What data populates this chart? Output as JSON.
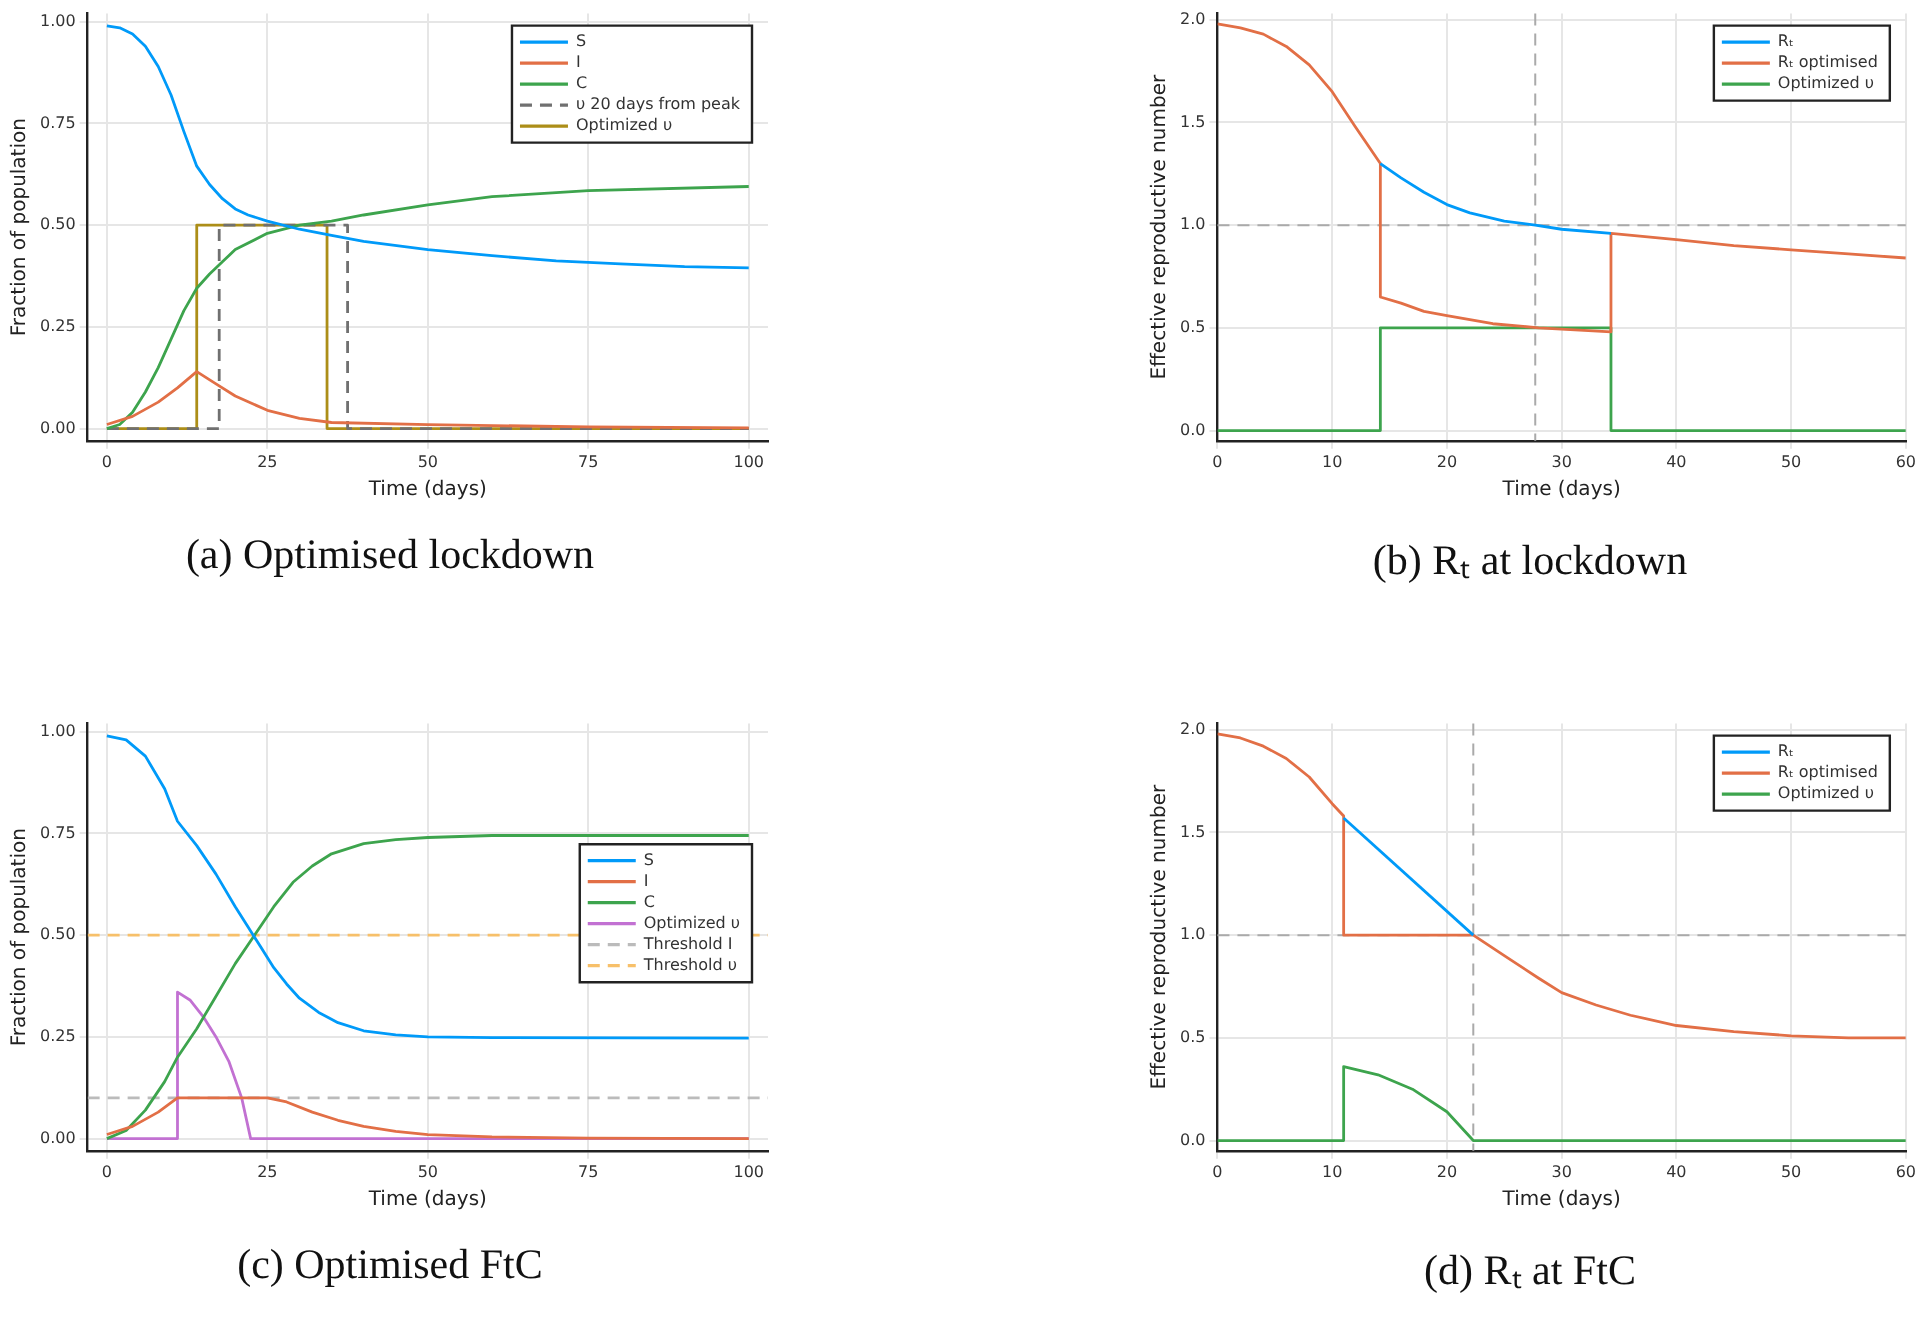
{
  "chart_data": [
    {
      "type": "line",
      "xlabel": "Time (days)",
      "ylabel": "Fraction of population",
      "xlim": [
        -3,
        103
      ],
      "xticks": [
        0,
        25,
        50,
        75,
        100
      ],
      "ylim": [
        -0.03,
        1.02
      ],
      "yticks": [
        {
          "value": 0,
          "label": "0.00"
        },
        {
          "value": 0.25,
          "label": "0.25"
        },
        {
          "value": 0.5,
          "label": "0.50"
        },
        {
          "value": 0.75,
          "label": "0.75"
        },
        {
          "value": 1,
          "label": "1.00"
        }
      ],
      "grid": true,
      "legend": "top right",
      "marker": "none",
      "annotations": [
        "(a) Optimised lockdown"
      ],
      "series": [
        {
          "name": "S",
          "color": "#009af9",
          "x": [
            0,
            2,
            4,
            6,
            8,
            10,
            12,
            14,
            16,
            18,
            20,
            22,
            25,
            30,
            35,
            40,
            50,
            60,
            70,
            80,
            90,
            100
          ],
          "values": [
            0.99,
            0.985,
            0.97,
            0.94,
            0.89,
            0.82,
            0.73,
            0.645,
            0.6,
            0.565,
            0.54,
            0.525,
            0.51,
            0.49,
            0.475,
            0.46,
            0.44,
            0.425,
            0.412,
            0.405,
            0.398,
            0.395
          ]
        },
        {
          "name": "I",
          "color": "#e26f46",
          "x": [
            0,
            4,
            8,
            11,
            14,
            17,
            20,
            25,
            30,
            35,
            50,
            75,
            100
          ],
          "values": [
            0.01,
            0.03,
            0.065,
            0.1,
            0.14,
            0.11,
            0.08,
            0.045,
            0.025,
            0.015,
            0.01,
            0.004,
            0.002
          ]
        },
        {
          "name": "C",
          "color": "#3da44d",
          "x": [
            0,
            2,
            4,
            6,
            8,
            10,
            12,
            14,
            16,
            18,
            20,
            25,
            30,
            35,
            40,
            50,
            60,
            75,
            100
          ],
          "values": [
            0,
            0.01,
            0.04,
            0.09,
            0.15,
            0.22,
            0.29,
            0.345,
            0.38,
            0.41,
            0.44,
            0.48,
            0.5,
            0.51,
            0.525,
            0.55,
            0.57,
            0.585,
            0.595
          ]
        },
        {
          "name": "υ 20 days from peak",
          "color": "#707070",
          "line_style": "dashed",
          "x": [
            0,
            17.5,
            17.5,
            37.5,
            37.5,
            100
          ],
          "values": [
            0,
            0,
            0.5,
            0.5,
            0,
            0
          ]
        },
        {
          "name": "Optimized υ",
          "color": "#ac8e18",
          "x": [
            0,
            14,
            14,
            34.3,
            34.3,
            100
          ],
          "values": [
            0,
            0,
            0.5,
            0.5,
            0,
            0
          ]
        }
      ]
    },
    {
      "type": "line",
      "xlabel": "Time (days)",
      "ylabel": "Effective reproductive number",
      "xlim": [
        0,
        60
      ],
      "xticks": [
        0,
        10,
        20,
        30,
        40,
        50,
        60
      ],
      "ylim": [
        -0.05,
        2.03
      ],
      "yticks": [
        {
          "value": 0,
          "label": "0.0"
        },
        {
          "value": 0.5,
          "label": "0.5"
        },
        {
          "value": 1,
          "label": "1.0"
        },
        {
          "value": 1.5,
          "label": "1.5"
        },
        {
          "value": 2,
          "label": "2.0"
        }
      ],
      "grid": true,
      "legend": "top right",
      "marker": "none",
      "annotations": [
        "(b) Rₜ at lockdown"
      ],
      "ref_lines": [
        {
          "axis": "y",
          "value": 1,
          "color": "#aaaaaa",
          "line_style": "dashed"
        },
        {
          "axis": "x",
          "value": 27.7,
          "color": "#aaaaaa",
          "line_style": "dashed"
        }
      ],
      "series": [
        {
          "name": "Rₜ",
          "color": "#009af9",
          "x": [
            14.2,
            16,
            18,
            20,
            22,
            25,
            27.7,
            30,
            34.3
          ],
          "values": [
            1.3,
            1.23,
            1.16,
            1.1,
            1.06,
            1.02,
            1.0,
            0.98,
            0.96
          ]
        },
        {
          "name": "Rₜ optimised",
          "color": "#e26f46",
          "x": [
            0,
            2,
            4,
            6,
            8,
            10,
            12,
            14.2,
            14.2,
            16,
            18,
            20,
            24,
            28,
            34.3,
            34.3,
            40,
            45,
            50,
            55,
            60
          ],
          "values": [
            1.98,
            1.96,
            1.93,
            1.87,
            1.78,
            1.65,
            1.48,
            1.3,
            0.65,
            0.62,
            0.58,
            0.56,
            0.52,
            0.5,
            0.48,
            0.96,
            0.93,
            0.9,
            0.88,
            0.86,
            0.84
          ]
        },
        {
          "name": "Optimized υ",
          "color": "#3da44d",
          "x": [
            0,
            14.2,
            14.2,
            34.3,
            34.3,
            60
          ],
          "values": [
            0,
            0,
            0.5,
            0.5,
            0,
            0
          ]
        }
      ]
    },
    {
      "type": "line",
      "xlabel": "Time (days)",
      "ylabel": "Fraction of population",
      "xlim": [
        -3,
        103
      ],
      "xticks": [
        0,
        25,
        50,
        75,
        100
      ],
      "ylim": [
        -0.03,
        1.02
      ],
      "yticks": [
        {
          "value": 0,
          "label": "0.00"
        },
        {
          "value": 0.25,
          "label": "0.25"
        },
        {
          "value": 0.5,
          "label": "0.50"
        },
        {
          "value": 0.75,
          "label": "0.75"
        },
        {
          "value": 1,
          "label": "1.00"
        }
      ],
      "grid": true,
      "legend": "right",
      "marker": "none",
      "annotations": [
        "(c) Optimised FtC"
      ],
      "series": [
        {
          "name": "S",
          "color": "#009af9",
          "x": [
            0,
            3,
            6,
            9,
            11,
            14,
            17,
            20,
            22,
            24,
            26,
            28,
            30,
            33,
            36,
            40,
            45,
            50,
            60,
            100
          ],
          "values": [
            0.99,
            0.98,
            0.94,
            0.86,
            0.78,
            0.72,
            0.65,
            0.57,
            0.52,
            0.47,
            0.42,
            0.38,
            0.345,
            0.31,
            0.285,
            0.265,
            0.255,
            0.25,
            0.248,
            0.247
          ]
        },
        {
          "name": "I",
          "color": "#e26f46",
          "x": [
            0,
            4,
            8,
            11,
            25,
            28,
            32,
            36,
            40,
            45,
            50,
            60,
            75,
            100
          ],
          "values": [
            0.01,
            0.03,
            0.065,
            0.1,
            0.1,
            0.09,
            0.065,
            0.045,
            0.03,
            0.018,
            0.01,
            0.004,
            0.001,
            0
          ]
        },
        {
          "name": "C",
          "color": "#3da44d",
          "x": [
            0,
            3,
            6,
            9,
            11,
            14,
            17,
            20,
            23,
            26,
            29,
            32,
            35,
            40,
            45,
            50,
            60,
            100
          ],
          "values": [
            0,
            0.02,
            0.07,
            0.14,
            0.2,
            0.27,
            0.35,
            0.43,
            0.5,
            0.57,
            0.63,
            0.67,
            0.7,
            0.725,
            0.735,
            0.74,
            0.745,
            0.745
          ]
        },
        {
          "name": "Optimized υ",
          "color": "#c271d2",
          "x": [
            0,
            11,
            11,
            13,
            15,
            17,
            19,
            21,
            22.4,
            100
          ],
          "values": [
            0,
            0,
            0.36,
            0.34,
            0.3,
            0.25,
            0.19,
            0.1,
            0,
            0
          ]
        },
        {
          "name": "Threshold I",
          "color": "#bbbbbb",
          "line_style": "dashed",
          "x": [
            -3,
            103
          ],
          "values": [
            0.1,
            0.1
          ]
        },
        {
          "name": "Threshold υ",
          "color": "#f7c06a",
          "line_style": "dashed",
          "x": [
            -3,
            103
          ],
          "values": [
            0.5,
            0.5
          ]
        }
      ]
    },
    {
      "type": "line",
      "xlabel": "Time (days)",
      "ylabel": "Effective reproductive number",
      "xlim": [
        0,
        60
      ],
      "xticks": [
        0,
        10,
        20,
        30,
        40,
        50,
        60
      ],
      "ylim": [
        -0.05,
        2.03
      ],
      "yticks": [
        {
          "value": 0,
          "label": "0.0"
        },
        {
          "value": 0.5,
          "label": "0.5"
        },
        {
          "value": 1,
          "label": "1.0"
        },
        {
          "value": 1.5,
          "label": "1.5"
        },
        {
          "value": 2,
          "label": "2.0"
        }
      ],
      "grid": true,
      "legend": "top right",
      "marker": "none",
      "annotations": [
        "(d) Rₜ at FtC"
      ],
      "ref_lines": [
        {
          "axis": "y",
          "value": 1,
          "color": "#aaaaaa",
          "line_style": "dashed"
        },
        {
          "axis": "x",
          "value": 22.3,
          "color": "#aaaaaa",
          "line_style": "dashed"
        }
      ],
      "series": [
        {
          "name": "Rₜ",
          "color": "#009af9",
          "x": [
            11,
            22.3
          ],
          "values": [
            1.57,
            1.0
          ]
        },
        {
          "name": "Rₜ optimised",
          "color": "#e26f46",
          "x": [
            0,
            2,
            4,
            6,
            8,
            10,
            11,
            11,
            22.3,
            25,
            28,
            30,
            33,
            36,
            40,
            45,
            50,
            55,
            60
          ],
          "values": [
            1.98,
            1.96,
            1.92,
            1.86,
            1.77,
            1.64,
            1.58,
            1.0,
            1.0,
            0.9,
            0.79,
            0.72,
            0.66,
            0.61,
            0.56,
            0.53,
            0.51,
            0.5,
            0.5
          ]
        },
        {
          "name": "Optimized υ",
          "color": "#3da44d",
          "x": [
            0,
            11,
            11,
            14,
            17,
            20,
            22.3,
            60
          ],
          "values": [
            0,
            0,
            0.36,
            0.32,
            0.25,
            0.14,
            0,
            0
          ]
        }
      ]
    }
  ]
}
